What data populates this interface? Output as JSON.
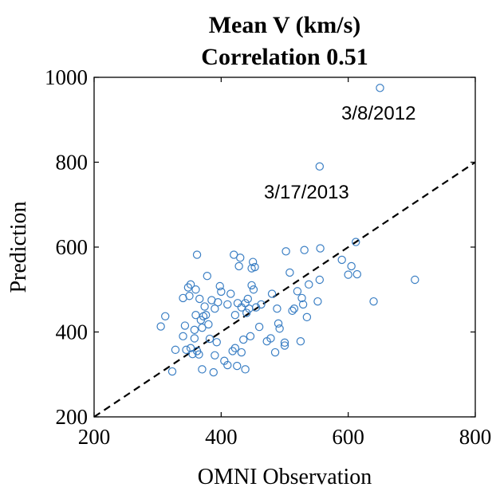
{
  "chart_data": {
    "type": "scatter",
    "title": "Mean V (km/s)",
    "subtitle": "Correlation 0.51",
    "xlabel": "OMNI Observation",
    "ylabel": "Prediction",
    "xlim": [
      200,
      800
    ],
    "ylim": [
      200,
      1000
    ],
    "xticks": [
      "200",
      "400",
      "600",
      "800"
    ],
    "yticks": [
      "200",
      "400",
      "600",
      "800",
      "1000"
    ],
    "grid": false,
    "marker_color": "#3b7fc4",
    "reference_line": {
      "style": "dashed",
      "color": "#000000",
      "slope": 1,
      "intercept": 0
    },
    "annotations": [
      {
        "text": "3/8/2012",
        "x": 650,
        "y": 975
      },
      {
        "text": "3/17/2013",
        "x": 555,
        "y": 790
      }
    ],
    "points": [
      [
        650,
        975
      ],
      [
        555,
        790
      ],
      [
        305,
        413
      ],
      [
        312,
        437
      ],
      [
        323,
        307
      ],
      [
        328,
        358
      ],
      [
        340,
        390
      ],
      [
        340,
        480
      ],
      [
        343,
        415
      ],
      [
        345,
        358
      ],
      [
        348,
        505
      ],
      [
        350,
        485
      ],
      [
        352,
        362
      ],
      [
        352,
        512
      ],
      [
        355,
        348
      ],
      [
        358,
        405
      ],
      [
        358,
        385
      ],
      [
        360,
        500
      ],
      [
        360,
        440
      ],
      [
        362,
        355
      ],
      [
        362,
        582
      ],
      [
        365,
        347
      ],
      [
        366,
        478
      ],
      [
        368,
        428
      ],
      [
        370,
        410
      ],
      [
        370,
        312
      ],
      [
        372,
        437
      ],
      [
        374,
        460
      ],
      [
        376,
        440
      ],
      [
        378,
        532
      ],
      [
        380,
        418
      ],
      [
        382,
        384
      ],
      [
        385,
        475
      ],
      [
        388,
        305
      ],
      [
        390,
        345
      ],
      [
        390,
        455
      ],
      [
        393,
        376
      ],
      [
        395,
        470
      ],
      [
        398,
        508
      ],
      [
        400,
        495
      ],
      [
        405,
        332
      ],
      [
        410,
        322
      ],
      [
        410,
        465
      ],
      [
        415,
        490
      ],
      [
        418,
        355
      ],
      [
        420,
        582
      ],
      [
        422,
        362
      ],
      [
        422,
        440
      ],
      [
        425,
        320
      ],
      [
        426,
        468
      ],
      [
        428,
        555
      ],
      [
        430,
        575
      ],
      [
        432,
        352
      ],
      [
        432,
        458
      ],
      [
        435,
        382
      ],
      [
        438,
        312
      ],
      [
        438,
        468
      ],
      [
        440,
        445
      ],
      [
        442,
        478
      ],
      [
        444,
        455
      ],
      [
        446,
        390
      ],
      [
        448,
        510
      ],
      [
        448,
        550
      ],
      [
        450,
        565
      ],
      [
        451,
        500
      ],
      [
        453,
        553
      ],
      [
        455,
        458
      ],
      [
        460,
        412
      ],
      [
        463,
        465
      ],
      [
        472,
        378
      ],
      [
        478,
        385
      ],
      [
        480,
        490
      ],
      [
        485,
        352
      ],
      [
        488,
        455
      ],
      [
        490,
        420
      ],
      [
        492,
        408
      ],
      [
        500,
        375
      ],
      [
        500,
        368
      ],
      [
        502,
        590
      ],
      [
        508,
        540
      ],
      [
        512,
        450
      ],
      [
        515,
        455
      ],
      [
        520,
        496
      ],
      [
        525,
        378
      ],
      [
        527,
        480
      ],
      [
        529,
        465
      ],
      [
        531,
        593
      ],
      [
        535,
        435
      ],
      [
        538,
        512
      ],
      [
        552,
        472
      ],
      [
        555,
        523
      ],
      [
        556,
        597
      ],
      [
        590,
        570
      ],
      [
        600,
        535
      ],
      [
        605,
        555
      ],
      [
        612,
        612
      ],
      [
        614,
        536
      ],
      [
        640,
        472
      ],
      [
        705,
        523
      ]
    ]
  }
}
